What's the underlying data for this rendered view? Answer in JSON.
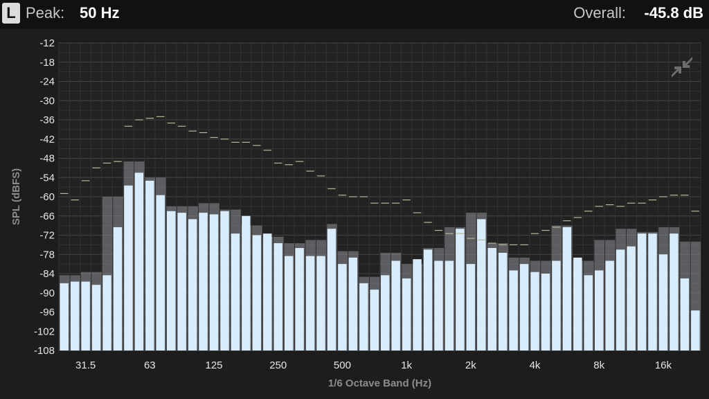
{
  "header": {
    "channel": "L",
    "peak_label": "Peak:",
    "peak_value": "50 Hz",
    "overall_label": "Overall:",
    "overall_value": "-45.8 dB"
  },
  "icons": {
    "collapse": "collapse-arrows-icon"
  },
  "colors": {
    "bar": "#d8ecfb",
    "hold": "#8a8e94",
    "peak_marker": "#b9b99a",
    "plot_bg": "#222222",
    "grid": "#3a3a3a"
  },
  "chart_data": {
    "type": "bar",
    "title": "",
    "xlabel": "1/6 Octave Band (Hz)",
    "ylabel": "SPL (dBFS)",
    "ylim": [
      -108,
      -12
    ],
    "y_ticks": [
      "-12",
      "-18",
      "-24",
      "-30",
      "-36",
      "-42",
      "-48",
      "-54",
      "-60",
      "-66",
      "-72",
      "-78",
      "-84",
      "-90",
      "-96",
      "-102",
      "-108"
    ],
    "x_ticks": [
      "31.5",
      "63",
      "125",
      "250",
      "500",
      "1k",
      "2k",
      "4k",
      "8k",
      "16k"
    ],
    "grid": true,
    "series": [
      {
        "values": [
          -87,
          -86.5,
          -86.5,
          -87.5,
          -84.5,
          -69.5,
          -56.5,
          -52.5,
          -55,
          -59.5,
          -64.5,
          -65,
          -67,
          -65,
          -65.5,
          -64.5,
          -71.5,
          -66,
          -72,
          -71.5,
          -74.5,
          -78.5,
          -76,
          -78.5,
          -78.5,
          -70,
          -81,
          -79,
          -87,
          -89,
          -84.5,
          -80,
          -85.5,
          -79.5,
          -76.5,
          -80,
          -80,
          -70,
          -81,
          -67,
          -76,
          -77.5,
          -83,
          -81,
          -83.5,
          -84,
          -80,
          -69.5,
          -79,
          -84.5,
          -83,
          -80,
          -76.5,
          -75.5,
          -71.5,
          -71.5,
          -78,
          -71.5,
          -85.5,
          -95.5
        ]
      },
      {
        "values": [
          -84.5,
          -84.5,
          -83.5,
          -83.5,
          -60,
          -60,
          -49,
          -49,
          -54,
          -54,
          -63,
          -63,
          -63,
          -62,
          -62,
          -64,
          -64,
          -69,
          -69,
          -72.5,
          -72.5,
          -74.5,
          -74.5,
          -73.5,
          -73.5,
          -68.5,
          -77,
          -77,
          -85,
          -85,
          -77.5,
          -77.5,
          -81,
          -81,
          -76,
          -76,
          -69.5,
          -69.5,
          -65,
          -65,
          -74.5,
          -74.5,
          -79,
          -79,
          -80,
          -80,
          -69,
          -69,
          -80,
          -80,
          -73.5,
          -73.5,
          -70,
          -70,
          -71,
          -71,
          -69.5,
          -69.5,
          -74,
          -74
        ]
      },
      {
        "values": [
          -59,
          -61,
          -55,
          -51,
          -49.5,
          -49,
          -38,
          -36,
          -35.5,
          -35,
          -37,
          -38,
          -39.5,
          -40,
          -41.5,
          -42,
          -43,
          -43,
          -44,
          -45.5,
          -49.5,
          -50,
          -49,
          -52,
          -53.5,
          -57.5,
          -59.5,
          -60,
          -60,
          -62,
          -62,
          -62,
          -61,
          -65,
          -68,
          -70.5,
          -71.5,
          -71.5,
          -73,
          -73.5,
          -74.5,
          -75,
          -75,
          -75,
          -71.5,
          -70.5,
          -69.5,
          -67.5,
          -66.5,
          -64.5,
          -63,
          -62.5,
          -63,
          -62,
          -62,
          -61,
          -60,
          -59.5,
          -59.5,
          -64.5
        ]
      }
    ]
  }
}
